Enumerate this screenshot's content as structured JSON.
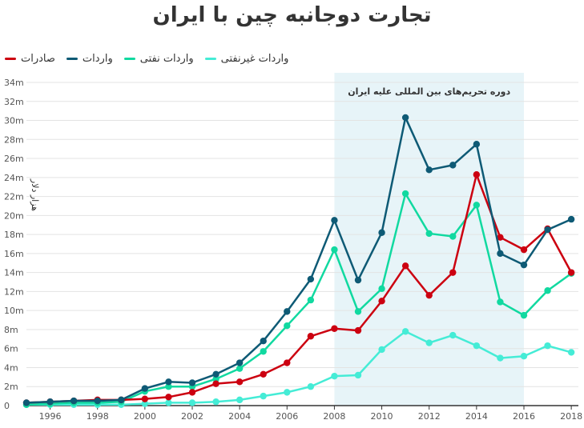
{
  "chart_data": {
    "type": "line",
    "title": "تجارت دوجانبه چین با ایران",
    "ylabel": "هزار دلار",
    "xlabel": "",
    "x": [
      1995,
      1996,
      1997,
      1998,
      1999,
      2000,
      2001,
      2002,
      2003,
      2004,
      2005,
      2006,
      2007,
      2008,
      2009,
      2010,
      2011,
      2012,
      2013,
      2014,
      2015,
      2016,
      2017,
      2018
    ],
    "xticks": [
      1996,
      1998,
      2000,
      2002,
      2004,
      2006,
      2008,
      2010,
      2012,
      2014,
      2016,
      2018
    ],
    "xlim": [
      1995,
      2018.3
    ],
    "ylim": [
      0,
      34
    ],
    "yticks": [
      "0",
      "2m",
      "4m",
      "6m",
      "8m",
      "10m",
      "12m",
      "14m",
      "16m",
      "18m",
      "20m",
      "22m",
      "24m",
      "26m",
      "28m",
      "30m",
      "32m",
      "34m"
    ],
    "grid": true,
    "legend_position": "top-left",
    "annotation": {
      "text": "دوره تحریم‌های بین المللی علیه ایران",
      "x_start": 2008,
      "x_end": 2016
    },
    "series": [
      {
        "name": "صادرات",
        "color": "#cc0010",
        "values": [
          0.3,
          0.4,
          0.5,
          0.6,
          0.6,
          0.7,
          0.9,
          1.4,
          2.3,
          2.5,
          3.3,
          4.5,
          7.3,
          8.1,
          7.9,
          11.0,
          14.7,
          11.6,
          14.0,
          24.3,
          17.7,
          16.4,
          18.6,
          14.0
        ]
      },
      {
        "name": "واردات",
        "color": "#0e5a75",
        "values": [
          0.3,
          0.4,
          0.5,
          0.5,
          0.6,
          1.8,
          2.5,
          2.4,
          3.3,
          4.5,
          6.8,
          9.9,
          13.3,
          19.5,
          13.2,
          18.2,
          30.3,
          24.8,
          25.3,
          27.5,
          16.0,
          14.8,
          18.5,
          19.6
        ]
      },
      {
        "name": "واردات نفتی",
        "color": "#11d9a0",
        "values": [
          0.1,
          0.2,
          0.3,
          0.3,
          0.4,
          1.5,
          2.0,
          2.0,
          2.8,
          3.9,
          5.7,
          8.4,
          11.1,
          16.4,
          9.9,
          12.3,
          22.3,
          18.1,
          17.8,
          21.1,
          10.9,
          9.5,
          12.1,
          13.9
        ]
      },
      {
        "name": "واردات غیرنفتی",
        "color": "#45ecd6",
        "values": [
          0.1,
          0.1,
          0.1,
          0.1,
          0.1,
          0.2,
          0.3,
          0.3,
          0.4,
          0.6,
          1.0,
          1.4,
          2.0,
          3.1,
          3.2,
          5.9,
          7.8,
          6.6,
          7.4,
          6.3,
          5.0,
          5.2,
          6.3,
          5.6
        ]
      }
    ]
  }
}
